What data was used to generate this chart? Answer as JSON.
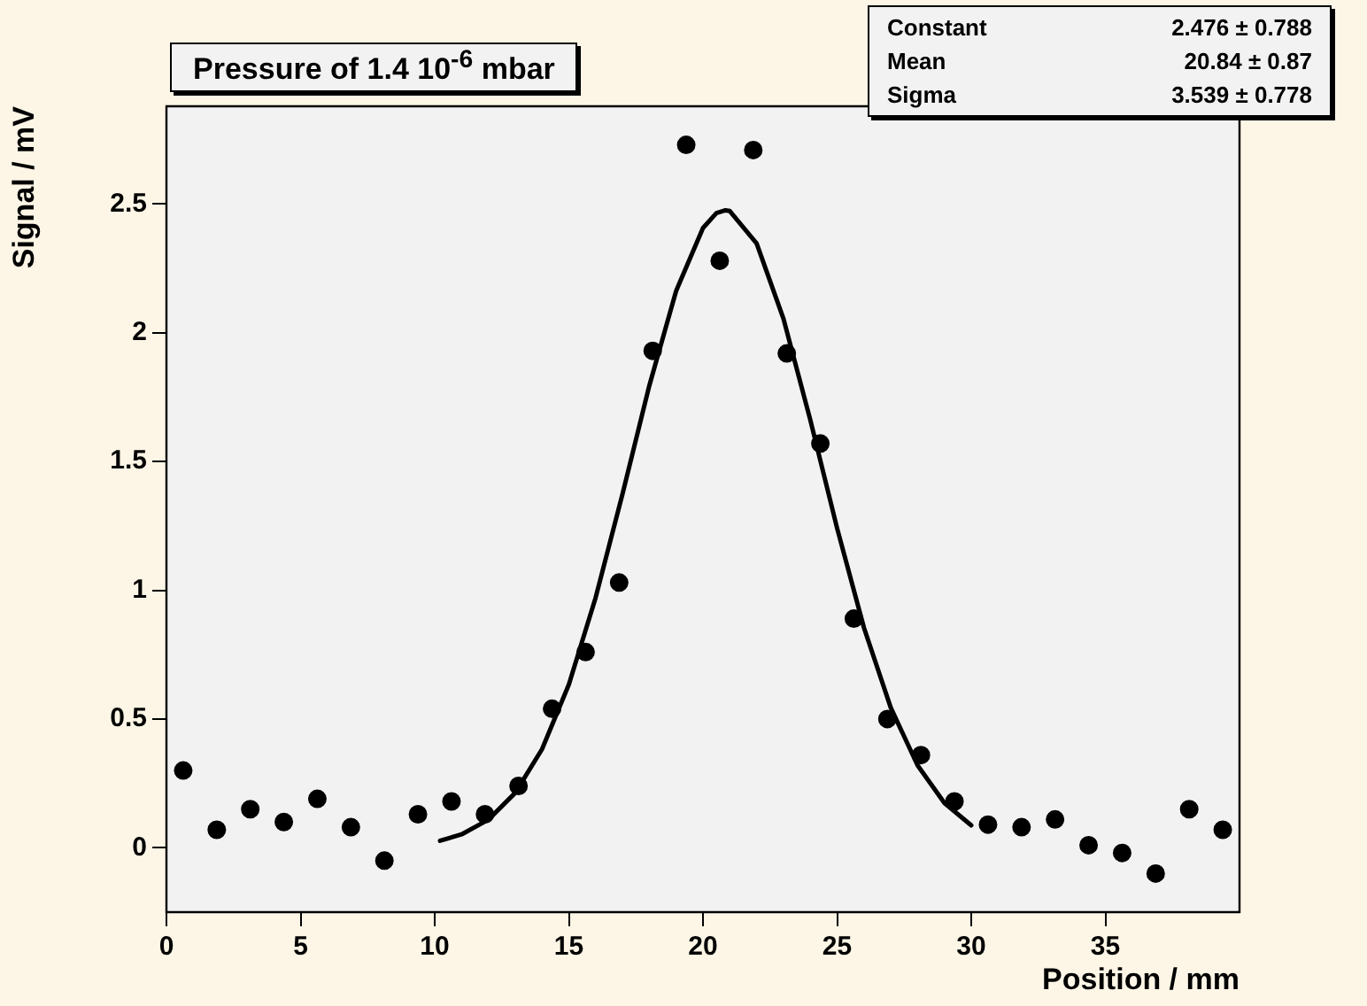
{
  "chart_data": {
    "type": "scatter",
    "title": "Pressure of 1.4 10$^{-6}$ mbar",
    "xlabel": "Position / mm",
    "ylabel": "Signal / mV",
    "annotations": [
      "Constant",
      "2.476 ± 0.788",
      "Mean",
      "20.84 ± 0.87",
      "Sigma",
      "3.539 ± 0.778"
    ],
    "xlim": [
      0,
      40
    ],
    "xticks": [
      0,
      5,
      10,
      15,
      20,
      25,
      30,
      35
    ],
    "ylim": [
      -0.25,
      2.88
    ],
    "yticks": [
      0,
      0.5,
      1,
      1.5,
      2,
      2.5
    ],
    "grid": false,
    "legend": false,
    "marker": "circle",
    "series": [
      {
        "type": "scatter",
        "color": "#000000",
        "x": [
          0.625,
          1.875,
          3.125,
          4.375,
          5.625,
          6.875,
          8.125,
          9.375,
          10.625,
          11.875,
          13.125,
          14.375,
          15.625,
          16.875,
          18.125,
          19.375,
          20.625,
          21.875,
          23.125,
          24.375,
          25.625,
          26.875,
          28.125,
          29.375,
          30.625,
          31.875,
          33.125,
          34.375,
          35.625,
          36.875,
          38.125,
          39.375
        ],
        "values": [
          0.3,
          0.07,
          0.15,
          0.1,
          0.19,
          0.08,
          -0.05,
          0.13,
          0.18,
          0.13,
          0.24,
          0.54,
          0.76,
          1.03,
          1.93,
          2.73,
          2.28,
          2.71,
          1.92,
          1.57,
          0.89,
          0.5,
          0.36,
          0.18,
          0.09,
          0.08,
          0.11,
          0.01,
          -0.02,
          -0.1,
          0.15,
          0.07
        ]
      },
      {
        "type": "line",
        "color": "#000000",
        "marker": "none",
        "line_style": "solid",
        "x": [
          10.2,
          11,
          12,
          13,
          14,
          15,
          16,
          17,
          18,
          19,
          20,
          20.5,
          20.84,
          21,
          22,
          23,
          24,
          25,
          26,
          27,
          28,
          29,
          30
        ],
        "values": [
          0.027,
          0.052,
          0.109,
          0.213,
          0.383,
          0.634,
          0.972,
          1.374,
          1.795,
          2.163,
          2.407,
          2.465,
          2.476,
          2.473,
          2.347,
          2.055,
          1.662,
          1.241,
          0.855,
          0.544,
          0.32,
          0.174,
          0.087
        ]
      }
    ]
  }
}
